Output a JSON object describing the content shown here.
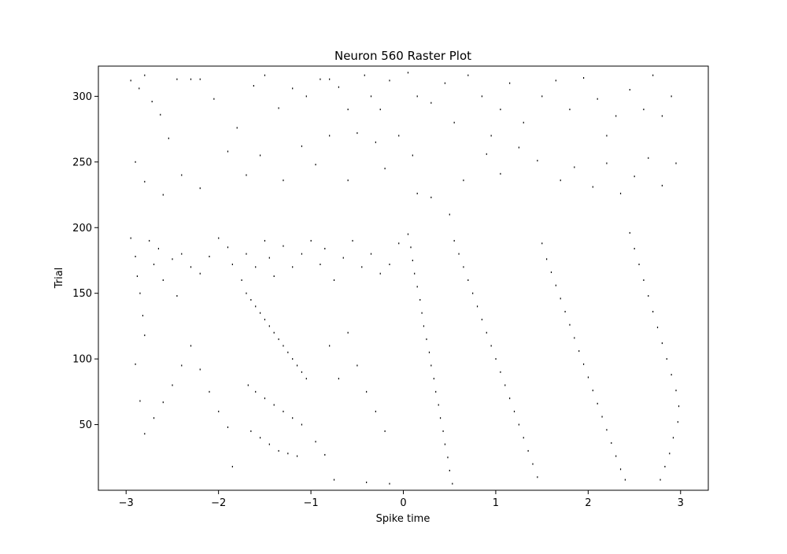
{
  "chart_data": {
    "type": "scatter",
    "title": "Neuron 560 Raster Plot",
    "xlabel": "Spike time",
    "ylabel": "Trial",
    "xlim": [
      -3.3,
      3.3
    ],
    "ylim": [
      0,
      323
    ],
    "grid": false,
    "legend": "none",
    "x_ticks": [
      -3,
      -2,
      -1,
      0,
      1,
      2,
      3
    ],
    "x_tick_labels": [
      "−3",
      "−2",
      "−1",
      "0",
      "1",
      "2",
      "3"
    ],
    "y_ticks": [
      50,
      100,
      150,
      200,
      250,
      300
    ],
    "y_tick_labels": [
      "50",
      "100",
      "150",
      "200",
      "250",
      "300"
    ],
    "mark_color": "#000000",
    "series": [
      {
        "values": [
          [
            -2.95,
            312
          ],
          [
            -2.86,
            306
          ],
          [
            -2.8,
            316
          ],
          [
            -2.72,
            296
          ],
          [
            -2.63,
            286
          ],
          [
            -2.54,
            268
          ],
          [
            -2.45,
            313
          ],
          [
            -2.3,
            313
          ],
          [
            -2.2,
            313
          ],
          [
            -2.05,
            298
          ],
          [
            -1.8,
            276
          ],
          [
            -1.62,
            308
          ],
          [
            -1.5,
            316
          ],
          [
            -1.35,
            291
          ],
          [
            -1.2,
            306
          ],
          [
            -1.05,
            300
          ],
          [
            -0.9,
            313
          ],
          [
            -0.8,
            313
          ],
          [
            -0.7,
            307
          ],
          [
            -0.6,
            290
          ],
          [
            -0.5,
            272
          ],
          [
            -0.42,
            316
          ],
          [
            -0.35,
            300
          ],
          [
            -0.25,
            290
          ],
          [
            -0.15,
            312
          ],
          [
            -0.05,
            270
          ],
          [
            0.05,
            318
          ],
          [
            0.15,
            300
          ],
          [
            0.3,
            295
          ],
          [
            0.45,
            310
          ],
          [
            0.55,
            280
          ],
          [
            0.7,
            316
          ],
          [
            0.85,
            300
          ],
          [
            0.95,
            270
          ],
          [
            1.05,
            290
          ],
          [
            1.15,
            310
          ],
          [
            1.3,
            280
          ],
          [
            1.5,
            300
          ],
          [
            1.65,
            312
          ],
          [
            1.8,
            290
          ],
          [
            1.95,
            314
          ],
          [
            2.1,
            298
          ],
          [
            2.2,
            270
          ],
          [
            2.3,
            285
          ],
          [
            2.45,
            305
          ],
          [
            2.6,
            290
          ],
          [
            2.7,
            316
          ],
          [
            2.8,
            285
          ],
          [
            2.9,
            300
          ],
          [
            -2.9,
            250
          ],
          [
            -2.8,
            235
          ],
          [
            -2.6,
            225
          ],
          [
            -2.4,
            240
          ],
          [
            -2.2,
            230
          ],
          [
            -1.9,
            258
          ],
          [
            -1.7,
            240
          ],
          [
            -1.55,
            255
          ],
          [
            -1.3,
            236
          ],
          [
            -1.1,
            262
          ],
          [
            -0.95,
            248
          ],
          [
            -0.8,
            270
          ],
          [
            -0.6,
            236
          ],
          [
            -0.3,
            265
          ],
          [
            -0.2,
            245
          ],
          [
            0.1,
            255
          ],
          [
            0.15,
            226
          ],
          [
            0.3,
            223
          ],
          [
            0.5,
            210
          ],
          [
            0.65,
            236
          ],
          [
            0.9,
            256
          ],
          [
            1.05,
            241
          ],
          [
            1.25,
            261
          ],
          [
            1.45,
            251
          ],
          [
            1.7,
            236
          ],
          [
            1.85,
            246
          ],
          [
            2.05,
            231
          ],
          [
            2.2,
            249
          ],
          [
            2.35,
            226
          ],
          [
            2.5,
            239
          ],
          [
            2.65,
            253
          ],
          [
            2.8,
            232
          ],
          [
            2.95,
            249
          ],
          [
            -2.95,
            192
          ],
          [
            -2.9,
            178
          ],
          [
            -2.88,
            163
          ],
          [
            -2.85,
            150
          ],
          [
            -2.82,
            133
          ],
          [
            -2.8,
            118
          ],
          [
            -2.75,
            190
          ],
          [
            -2.7,
            172
          ],
          [
            -2.65,
            184
          ],
          [
            -2.6,
            160
          ],
          [
            -2.5,
            176
          ],
          [
            -2.45,
            148
          ],
          [
            -2.4,
            180
          ],
          [
            -2.3,
            170
          ],
          [
            -2.2,
            165
          ],
          [
            -2.1,
            178
          ],
          [
            -2.0,
            192
          ],
          [
            -1.9,
            185
          ],
          [
            -1.85,
            172
          ],
          [
            -1.75,
            160
          ],
          [
            -1.7,
            180
          ],
          [
            -1.6,
            170
          ],
          [
            -1.5,
            190
          ],
          [
            -1.45,
            177
          ],
          [
            -1.4,
            163
          ],
          [
            -1.3,
            186
          ],
          [
            -1.2,
            170
          ],
          [
            -1.1,
            180
          ],
          [
            -1.0,
            190
          ],
          [
            -0.9,
            172
          ],
          [
            -0.85,
            184
          ],
          [
            -0.75,
            160
          ],
          [
            -0.65,
            177
          ],
          [
            -0.55,
            190
          ],
          [
            -0.45,
            170
          ],
          [
            -0.35,
            180
          ],
          [
            -0.25,
            165
          ],
          [
            -0.15,
            172
          ],
          [
            -0.05,
            188
          ],
          [
            0.05,
            195
          ],
          [
            0.08,
            185
          ],
          [
            0.1,
            175
          ],
          [
            0.12,
            165
          ],
          [
            0.15,
            155
          ],
          [
            0.18,
            145
          ],
          [
            0.2,
            135
          ],
          [
            0.22,
            125
          ],
          [
            0.25,
            115
          ],
          [
            0.28,
            105
          ],
          [
            0.3,
            95
          ],
          [
            0.33,
            85
          ],
          [
            0.35,
            75
          ],
          [
            0.38,
            65
          ],
          [
            0.4,
            55
          ],
          [
            0.43,
            45
          ],
          [
            0.45,
            35
          ],
          [
            0.48,
            25
          ],
          [
            0.5,
            15
          ],
          [
            0.53,
            5
          ],
          [
            0.55,
            190
          ],
          [
            0.6,
            180
          ],
          [
            0.65,
            170
          ],
          [
            0.7,
            160
          ],
          [
            0.75,
            150
          ],
          [
            0.8,
            140
          ],
          [
            0.85,
            130
          ],
          [
            0.9,
            120
          ],
          [
            0.95,
            110
          ],
          [
            1.0,
            100
          ],
          [
            1.05,
            90
          ],
          [
            1.1,
            80
          ],
          [
            1.15,
            70
          ],
          [
            1.2,
            60
          ],
          [
            1.25,
            50
          ],
          [
            1.3,
            40
          ],
          [
            1.35,
            30
          ],
          [
            1.4,
            20
          ],
          [
            1.45,
            10
          ],
          [
            1.5,
            188
          ],
          [
            1.55,
            176
          ],
          [
            1.6,
            166
          ],
          [
            1.65,
            156
          ],
          [
            1.7,
            146
          ],
          [
            1.75,
            136
          ],
          [
            1.8,
            126
          ],
          [
            1.85,
            116
          ],
          [
            1.9,
            106
          ],
          [
            1.95,
            96
          ],
          [
            2.0,
            86
          ],
          [
            2.05,
            76
          ],
          [
            2.1,
            66
          ],
          [
            2.15,
            56
          ],
          [
            2.2,
            46
          ],
          [
            2.25,
            36
          ],
          [
            2.3,
            26
          ],
          [
            2.35,
            16
          ],
          [
            2.4,
            8
          ],
          [
            2.45,
            196
          ],
          [
            2.5,
            184
          ],
          [
            2.55,
            172
          ],
          [
            2.6,
            160
          ],
          [
            2.65,
            148
          ],
          [
            2.7,
            136
          ],
          [
            2.75,
            124
          ],
          [
            2.8,
            112
          ],
          [
            2.85,
            100
          ],
          [
            2.9,
            88
          ],
          [
            2.95,
            76
          ],
          [
            2.98,
            64
          ],
          [
            2.97,
            52
          ],
          [
            2.92,
            40
          ],
          [
            2.88,
            28
          ],
          [
            2.83,
            18
          ],
          [
            2.78,
            8
          ],
          [
            -1.7,
            150
          ],
          [
            -1.65,
            145
          ],
          [
            -1.6,
            140
          ],
          [
            -1.55,
            135
          ],
          [
            -1.5,
            130
          ],
          [
            -1.45,
            125
          ],
          [
            -1.4,
            120
          ],
          [
            -1.35,
            115
          ],
          [
            -1.3,
            110
          ],
          [
            -1.25,
            105
          ],
          [
            -1.2,
            100
          ],
          [
            -1.15,
            95
          ],
          [
            -1.1,
            90
          ],
          [
            -1.05,
            85
          ],
          [
            -1.68,
            80
          ],
          [
            -1.6,
            75
          ],
          [
            -1.5,
            70
          ],
          [
            -1.4,
            65
          ],
          [
            -1.3,
            60
          ],
          [
            -1.2,
            55
          ],
          [
            -1.1,
            50
          ],
          [
            -1.65,
            45
          ],
          [
            -1.55,
            40
          ],
          [
            -1.45,
            35
          ],
          [
            -1.35,
            30
          ],
          [
            -1.25,
            28
          ],
          [
            -1.15,
            26
          ],
          [
            -2.9,
            96
          ],
          [
            -2.85,
            68
          ],
          [
            -2.8,
            43
          ],
          [
            -2.7,
            55
          ],
          [
            -2.6,
            67
          ],
          [
            -2.5,
            80
          ],
          [
            -2.4,
            95
          ],
          [
            -2.3,
            110
          ],
          [
            -2.2,
            92
          ],
          [
            -2.1,
            75
          ],
          [
            -2.0,
            60
          ],
          [
            -1.9,
            48
          ],
          [
            -1.85,
            18
          ],
          [
            -0.95,
            37
          ],
          [
            -0.85,
            27
          ],
          [
            -0.8,
            110
          ],
          [
            -0.7,
            85
          ],
          [
            -0.6,
            120
          ],
          [
            -0.5,
            95
          ],
          [
            -0.4,
            75
          ],
          [
            -0.3,
            60
          ],
          [
            -0.2,
            45
          ],
          [
            -0.15,
            5
          ],
          [
            -0.4,
            6
          ],
          [
            -0.75,
            8
          ]
        ]
      }
    ]
  }
}
